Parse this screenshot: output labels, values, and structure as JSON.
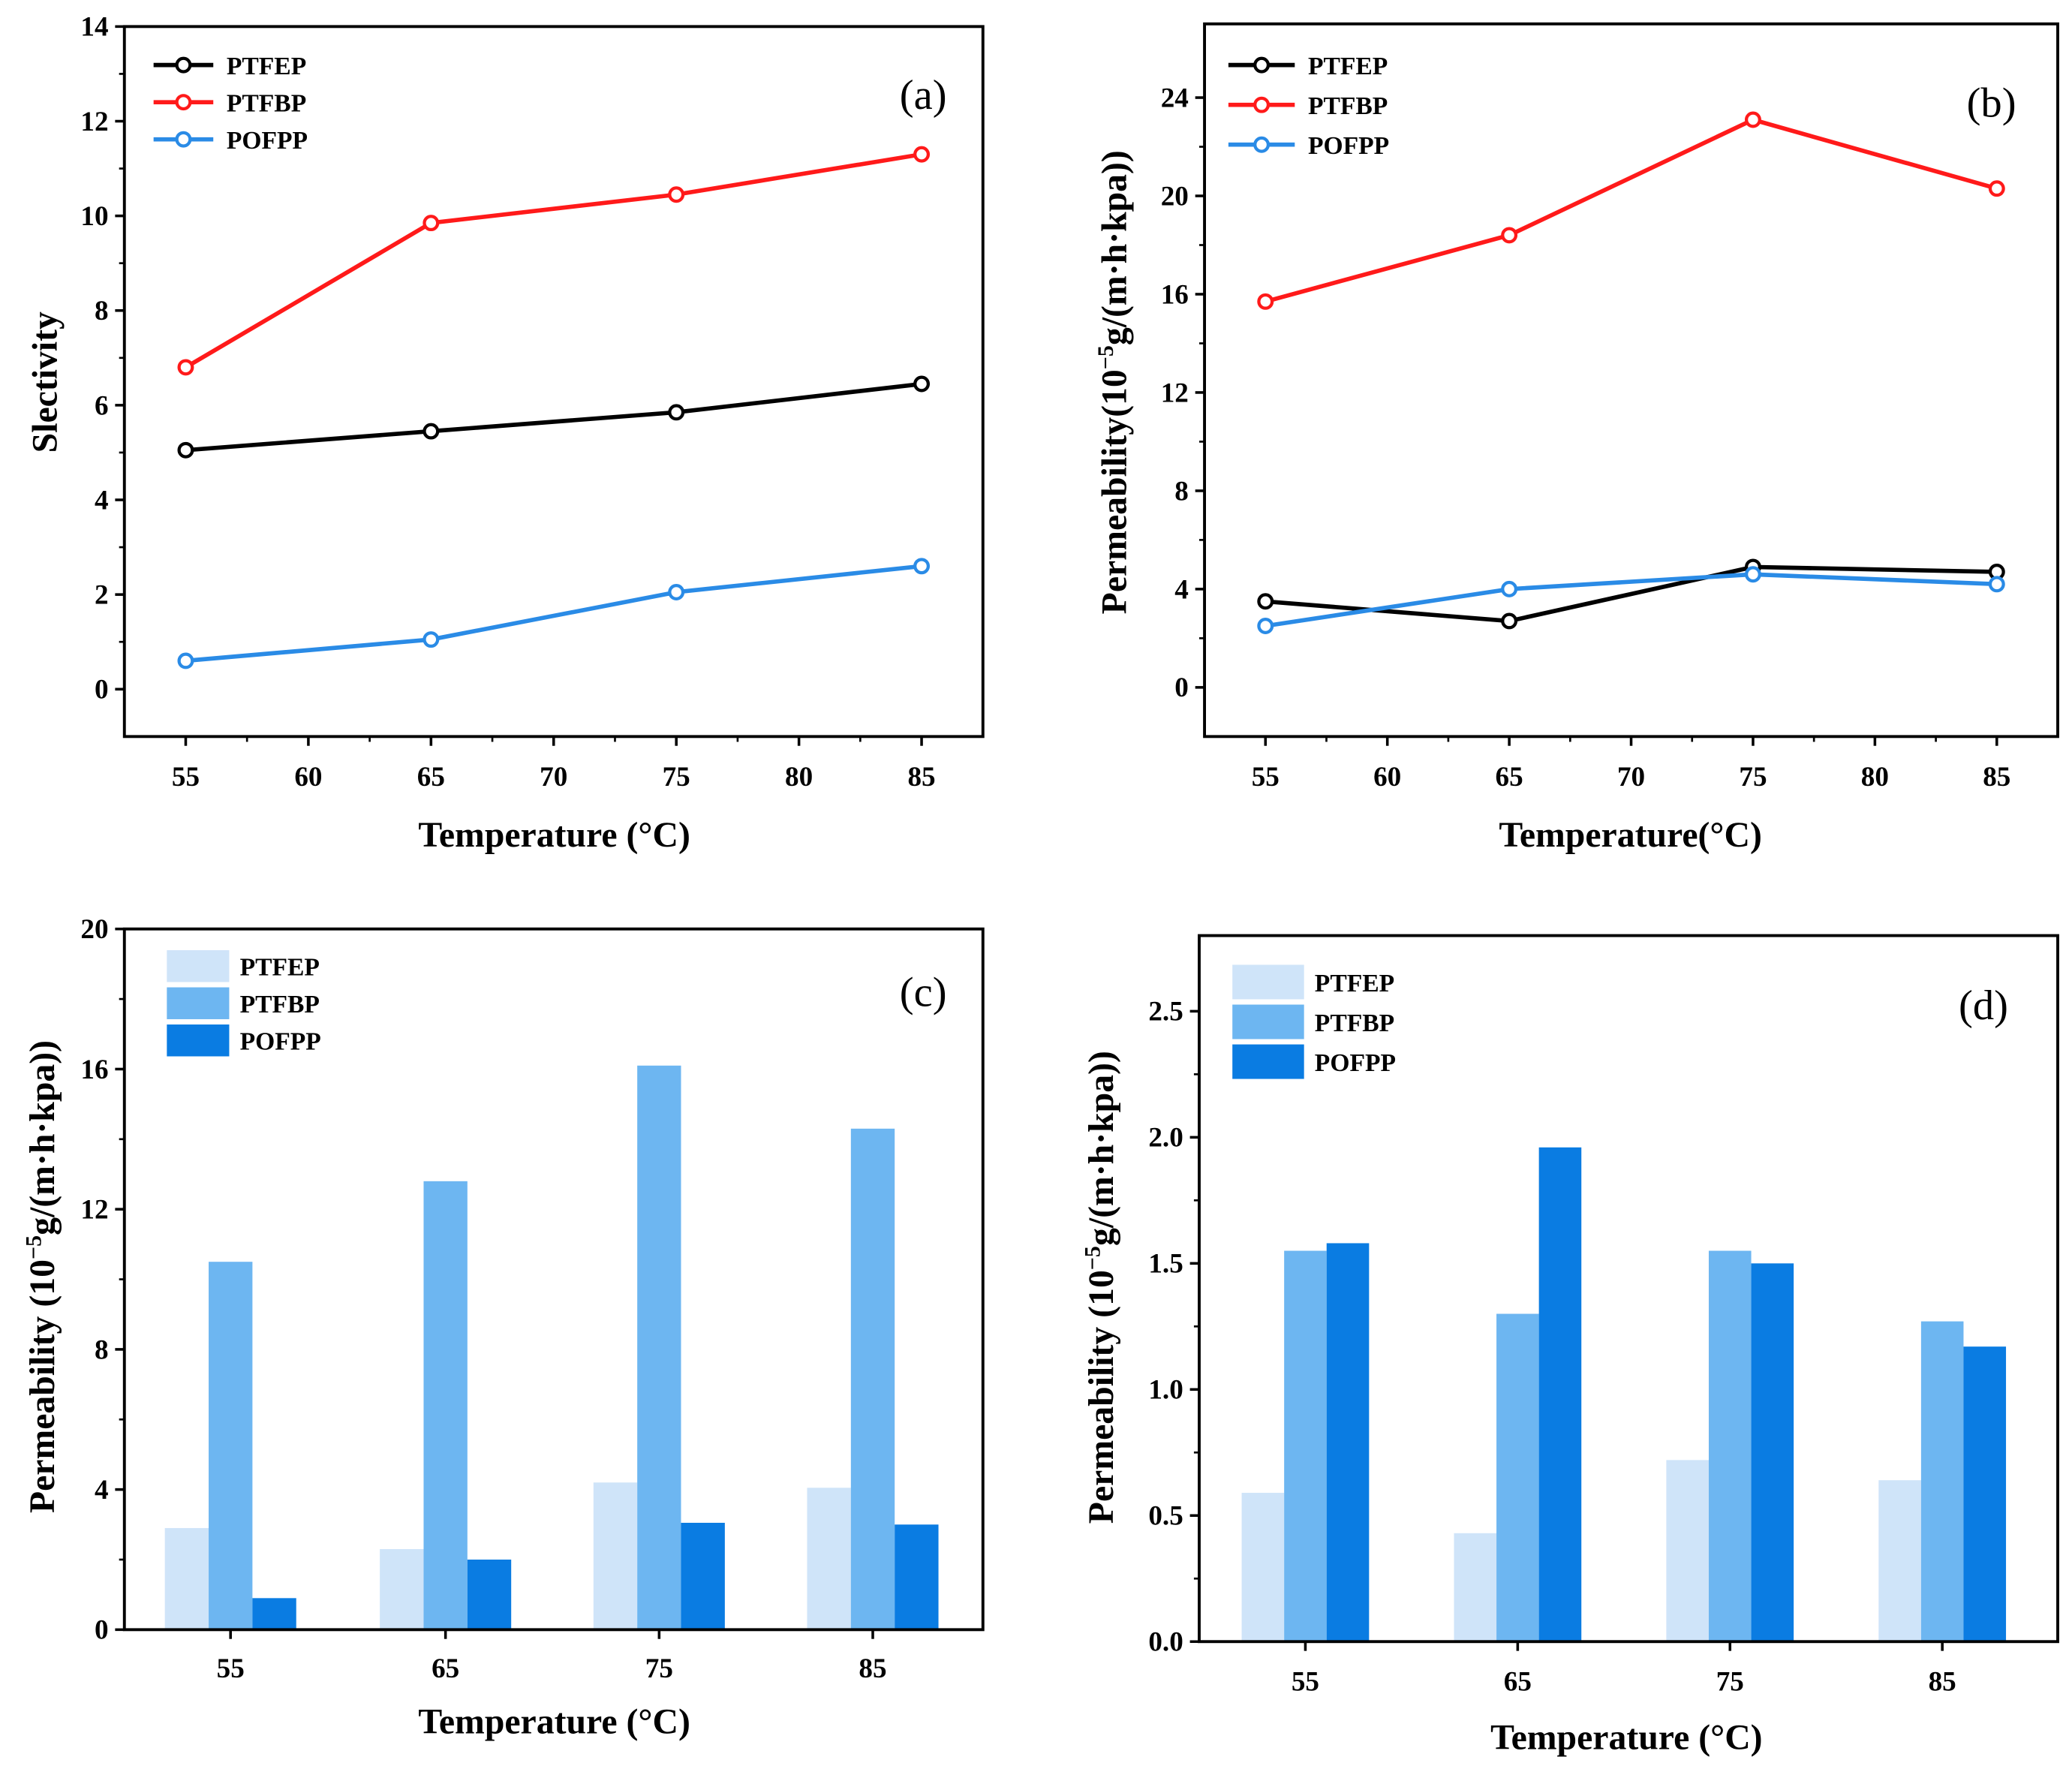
{
  "chart_data": [
    {
      "id": "a",
      "panel_label": "(a)",
      "type": "line",
      "title": "",
      "xlabel": "Temperature (°C)",
      "ylabel": {
        "main": "Slectivity",
        "sup": "",
        "tail": ""
      },
      "x": [
        55,
        65,
        75,
        85
      ],
      "xlim": [
        52.5,
        87.5
      ],
      "xticks": [
        55,
        60,
        65,
        70,
        75,
        80,
        85
      ],
      "ylim": [
        -1,
        14
      ],
      "yticks": [
        0,
        2,
        4,
        6,
        8,
        10,
        12,
        14
      ],
      "grid": false,
      "legend_position": "top-left",
      "series": [
        {
          "name": "PTFEP",
          "color": "#000000",
          "values": [
            5.05,
            5.45,
            5.85,
            6.45
          ]
        },
        {
          "name": "PTFBP",
          "color": "#ff1a1a",
          "values": [
            6.8,
            9.85,
            10.45,
            11.3
          ]
        },
        {
          "name": "POFPP",
          "color": "#2a8be6",
          "values": [
            0.6,
            1.05,
            2.05,
            2.6
          ]
        }
      ]
    },
    {
      "id": "b",
      "panel_label": "(b)",
      "type": "line",
      "title": "",
      "xlabel": "Temperature(°C)",
      "ylabel": {
        "main": "Permeability(10",
        "sup": "−5",
        "tail": "g/(m·h·kpa))"
      },
      "x": [
        55,
        65,
        75,
        85
      ],
      "xlim": [
        52.5,
        87.5
      ],
      "xticks": [
        55,
        60,
        65,
        70,
        75,
        80,
        85
      ],
      "ylim": [
        -2,
        27
      ],
      "yticks": [
        0,
        4,
        8,
        12,
        16,
        20,
        24
      ],
      "grid": false,
      "legend_position": "top-left",
      "series": [
        {
          "name": "PTFEP",
          "color": "#000000",
          "values": [
            3.5,
            2.7,
            4.9,
            4.7
          ]
        },
        {
          "name": "PTFBP",
          "color": "#ff1a1a",
          "values": [
            15.7,
            18.4,
            23.1,
            20.3
          ]
        },
        {
          "name": "POFPP",
          "color": "#2a8be6",
          "values": [
            2.5,
            4.0,
            4.6,
            4.2
          ]
        }
      ]
    },
    {
      "id": "c",
      "panel_label": "(c)",
      "type": "bar",
      "title": "",
      "xlabel": "Temperature (°C)",
      "ylabel": {
        "main": "Permeability (10",
        "sup": "−5",
        "tail": "g/(m·h·kpa))"
      },
      "categories": [
        "55",
        "65",
        "75",
        "85"
      ],
      "ylim": [
        0,
        20
      ],
      "yticks": [
        0,
        4,
        8,
        12,
        16,
        20
      ],
      "grid": false,
      "legend_position": "top-left",
      "series": [
        {
          "name": "PTFEP",
          "color": "#cfe4f9",
          "values": [
            2.9,
            2.3,
            4.2,
            4.05
          ]
        },
        {
          "name": "PTFBP",
          "color": "#6db6f1",
          "values": [
            10.5,
            12.8,
            16.1,
            14.3
          ]
        },
        {
          "name": "POFPP",
          "color": "#0a7ce2",
          "values": [
            0.9,
            2.0,
            3.05,
            3.0
          ]
        }
      ]
    },
    {
      "id": "d",
      "panel_label": "(d)",
      "type": "bar",
      "title": "",
      "xlabel": "Temperature (°C)",
      "ylabel": {
        "main": "Permeability (10",
        "sup": "−5",
        "tail": "g/(m·h·kpa))"
      },
      "categories": [
        "55",
        "65",
        "75",
        "85"
      ],
      "ylim": [
        0,
        2.8
      ],
      "yticks": [
        0.0,
        0.5,
        1.0,
        1.5,
        2.0,
        2.5
      ],
      "ytick_decimals": 1,
      "grid": false,
      "legend_position": "top-left",
      "series": [
        {
          "name": "PTFEP",
          "color": "#cfe4f9",
          "values": [
            0.59,
            0.43,
            0.72,
            0.64
          ]
        },
        {
          "name": "PTFBP",
          "color": "#6db6f1",
          "values": [
            1.55,
            1.3,
            1.55,
            1.27
          ]
        },
        {
          "name": "POFPP",
          "color": "#0a7ce2",
          "values": [
            1.58,
            1.96,
            1.5,
            1.17
          ]
        }
      ]
    }
  ]
}
